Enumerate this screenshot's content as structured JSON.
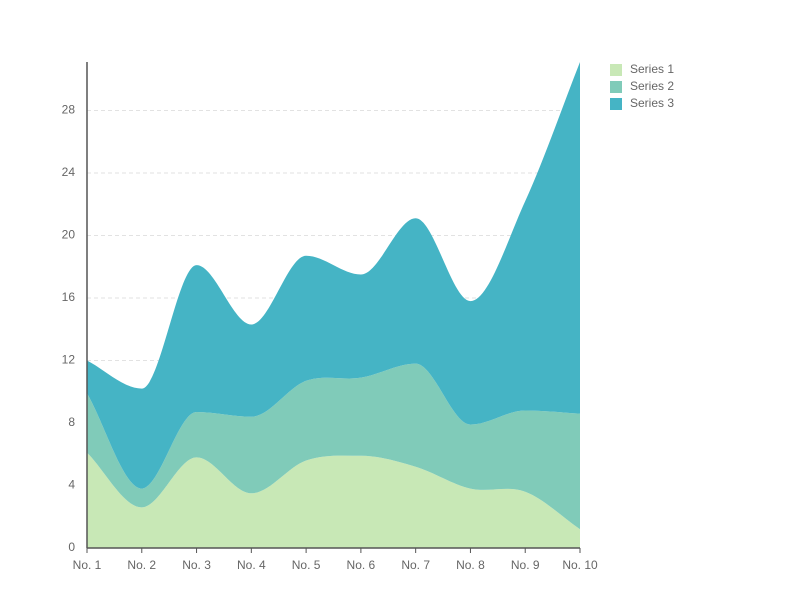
{
  "chart_data": {
    "type": "area",
    "stacked": true,
    "categories": [
      "No. 1",
      "No. 2",
      "No. 3",
      "No. 4",
      "No. 5",
      "No. 6",
      "No. 7",
      "No. 8",
      "No. 9",
      "No. 10"
    ],
    "series": [
      {
        "name": "Series 1",
        "color": "#c8e8b6",
        "values": [
          6.1,
          2.6,
          5.8,
          3.5,
          5.6,
          5.9,
          5.2,
          3.8,
          3.6,
          1.2
        ]
      },
      {
        "name": "Series 2",
        "color": "#80cbb9",
        "values": [
          3.8,
          1.2,
          2.9,
          4.9,
          5.1,
          5.0,
          6.6,
          4.1,
          5.2,
          7.4
        ]
      },
      {
        "name": "Series 3",
        "color": "#45b4c5",
        "values": [
          2.1,
          6.4,
          9.4,
          5.9,
          8.0,
          6.6,
          9.3,
          7.9,
          13.4,
          22.5
        ]
      }
    ],
    "ylim": [
      0,
      31.1
    ],
    "yticks": [
      0,
      4,
      8,
      12,
      16,
      20,
      24,
      28
    ],
    "grid": true,
    "legend": "top-right"
  }
}
